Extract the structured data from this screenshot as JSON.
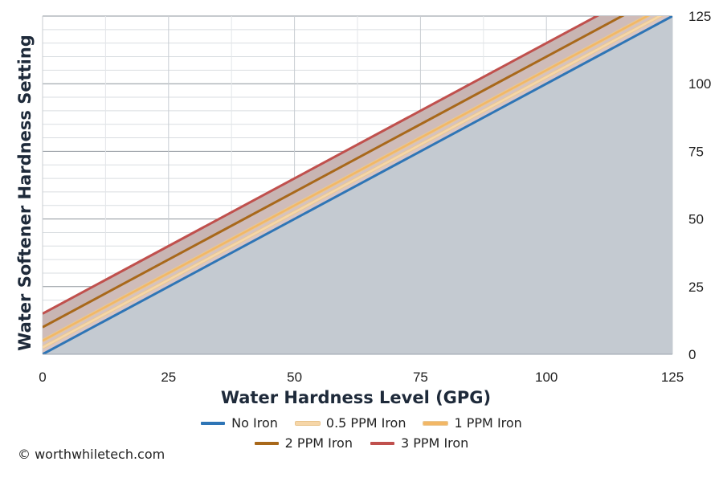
{
  "chart_data": {
    "type": "line",
    "xlabel": "Water Hardness Level (GPG)",
    "ylabel": "Water Softener Hardness Setting",
    "xlim": [
      0,
      125
    ],
    "ylim": [
      0,
      125
    ],
    "x_ticks": [
      "0",
      "25",
      "50",
      "75",
      "100",
      "125"
    ],
    "y_ticks": [
      "0",
      "25",
      "50",
      "75",
      "100",
      "125"
    ],
    "y_axis_side": "right",
    "grid": true,
    "legend_position": "bottom",
    "series": [
      {
        "name": "No Iron",
        "color": "#2e75b6",
        "x": [
          0,
          125
        ],
        "y": [
          0,
          125
        ]
      },
      {
        "name": "0.5 PPM Iron",
        "color": "#f6d6a8",
        "x": [
          0,
          125
        ],
        "y": [
          2.5,
          127.5
        ]
      },
      {
        "name": "1 PPM Iron",
        "color": "#f2b766",
        "x": [
          0,
          125
        ],
        "y": [
          5,
          130
        ]
      },
      {
        "name": "2 PPM Iron",
        "color": "#a8681a",
        "x": [
          0,
          125
        ],
        "y": [
          10,
          135
        ]
      },
      {
        "name": "3 PPM Iron",
        "color": "#c0504d",
        "x": [
          0,
          125
        ],
        "y": [
          15,
          140
        ]
      }
    ]
  },
  "copyright": "© worthwhiletech.com"
}
